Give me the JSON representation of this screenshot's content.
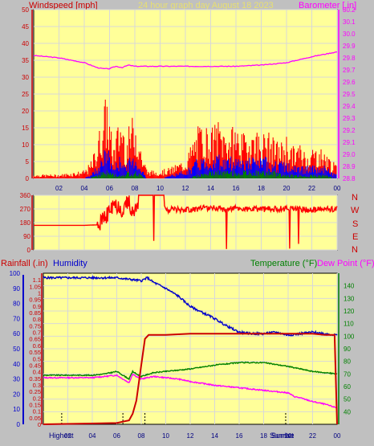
{
  "header": {
    "left_label": "Windspeed [mph]",
    "center_label": "24 hour graph day   August 18 2023",
    "right_label": "Barometer [.in]"
  },
  "bottom_header": {
    "rain_label": "Rainfall (.in)",
    "humidity_label": "Humidity",
    "temp_label": "Temperature (°F)",
    "dew_label": "Dew Point (°F)"
  },
  "compass": [
    "N",
    "W",
    "S",
    "E",
    "N"
  ],
  "x_ticks": [
    "02",
    "04",
    "06",
    "08",
    "10",
    "12",
    "14",
    "16",
    "18",
    "20",
    "22",
    "00"
  ],
  "events": {
    "highest": "Highest",
    "sunrise": "Sunrise",
    "sunset": "Sunset"
  },
  "colors": {
    "plot_bg": "#ffff99",
    "frame_bg": "#c0c0c0",
    "wind_gust": "#ff0000",
    "wind_avg": "#0000ff",
    "wind_low": "#008000",
    "barometer": "#ff00ff",
    "header_yellow": "#ffff66",
    "temperature": "#008000",
    "dew_point": "#ff00ff",
    "humidity": "#0000cc",
    "rainfall": "#cc0000"
  },
  "chart_data": [
    {
      "type": "area",
      "name": "wind_barometer",
      "x_range_hours": [
        0,
        24
      ],
      "grid": true,
      "left_axis": {
        "label": "Windspeed [mph]",
        "ylim": [
          0,
          50
        ],
        "ticks": [
          0,
          5,
          10,
          15,
          20,
          25,
          30,
          35,
          40,
          45,
          50
        ]
      },
      "right_axis": {
        "label": "Barometer [.in]",
        "ylim": [
          28.8,
          30.2
        ],
        "ticks": [
          28.8,
          28.9,
          29.0,
          29.1,
          29.2,
          29.3,
          29.4,
          29.5,
          29.6,
          29.7,
          29.8,
          29.9,
          30.0,
          30.1,
          30.2
        ]
      },
      "barometer": {
        "x": [
          0,
          2,
          4,
          5,
          5.5,
          6,
          6.5,
          7,
          7.5,
          8,
          9,
          10,
          11,
          12,
          14,
          16,
          18,
          20,
          22,
          23,
          24
        ],
        "y": [
          29.82,
          29.8,
          29.76,
          29.72,
          29.71,
          29.71,
          29.73,
          29.72,
          29.74,
          29.73,
          29.73,
          29.73,
          29.73,
          29.73,
          29.73,
          29.73,
          29.74,
          29.76,
          29.81,
          29.83,
          29.85
        ]
      },
      "gust_envelope": {
        "x": [
          0,
          2,
          4,
          4.5,
          5,
          5.5,
          5.8,
          6,
          6.3,
          6.6,
          7,
          7.3,
          7.6,
          8,
          8.3,
          8.6,
          9,
          10,
          11,
          12,
          12.5,
          13,
          13.5,
          14,
          14.5,
          15,
          15.5,
          16,
          16.5,
          17,
          17.5,
          18,
          18.5,
          19,
          19.5,
          20,
          20.5,
          21,
          21.5,
          22,
          22.5,
          23,
          23.5,
          24
        ],
        "y": [
          1,
          1,
          2,
          4,
          9,
          18,
          22,
          15,
          8,
          13,
          17,
          9,
          14,
          17,
          12,
          6,
          2,
          2,
          3,
          5,
          9,
          13,
          14,
          12,
          15,
          13,
          12,
          14,
          11,
          12,
          13,
          11,
          12,
          10,
          9,
          11,
          8,
          9,
          7,
          8,
          8,
          7,
          5,
          3
        ]
      },
      "avg_envelope": {
        "x": [
          0,
          2,
          4,
          4.5,
          5,
          5.5,
          5.8,
          6,
          6.3,
          6.6,
          7,
          7.3,
          7.6,
          8,
          8.3,
          8.6,
          9,
          10,
          11,
          12,
          12.5,
          13,
          13.5,
          14,
          14.5,
          15,
          15.5,
          16,
          16.5,
          17,
          17.5,
          18,
          18.5,
          19,
          19.5,
          20,
          20.5,
          21,
          21.5,
          22,
          22.5,
          23,
          23.5,
          24
        ],
        "y": [
          0,
          0,
          0,
          1,
          3,
          6,
          8,
          6,
          3,
          4,
          6,
          3,
          5,
          6,
          4,
          2,
          0,
          0,
          1,
          2,
          3,
          5,
          5,
          5,
          6,
          5,
          5,
          6,
          5,
          5,
          5,
          5,
          5,
          4,
          4,
          4,
          3,
          3,
          3,
          3,
          3,
          3,
          2,
          1
        ]
      },
      "low_envelope": {
        "x": [
          0,
          4,
          5,
          5.5,
          6,
          6.5,
          7,
          7.5,
          8,
          8.5,
          9,
          12,
          13,
          14,
          15,
          16,
          17,
          18,
          19,
          20,
          21,
          22,
          23,
          24
        ],
        "y": [
          0,
          0,
          1,
          2,
          2,
          1,
          1,
          2,
          2,
          1,
          0,
          0,
          1,
          2,
          2,
          2,
          2,
          2,
          2,
          1,
          1,
          1,
          1,
          0
        ]
      }
    },
    {
      "type": "line",
      "name": "wind_direction",
      "x_range_hours": [
        0,
        24
      ],
      "grid": true,
      "ylim": [
        0,
        360
      ],
      "ticks": [
        0,
        90,
        180,
        270,
        360
      ],
      "direction": {
        "x": [
          0,
          4,
          5,
          5.5,
          6,
          6.5,
          7,
          7.5,
          8,
          8.5,
          9,
          9.5,
          10,
          10.5,
          11,
          12,
          13,
          14,
          15,
          16,
          17,
          18,
          19,
          20,
          21,
          22,
          23,
          24
        ],
        "y": [
          162,
          162,
          165,
          190,
          260,
          300,
          270,
          310,
          240,
          360,
          360,
          360,
          355,
          262,
          270,
          265,
          270,
          280,
          270,
          275,
          265,
          270,
          268,
          275,
          270,
          262,
          268,
          270
        ]
      }
    },
    {
      "type": "line",
      "name": "temperature_humidity_rain",
      "x_range_hours": [
        0,
        24
      ],
      "grid": true,
      "humidity_axis": {
        "label": "Humidity",
        "ylim": [
          0,
          100
        ],
        "ticks": [
          0,
          10,
          20,
          30,
          40,
          50,
          60,
          70,
          80,
          90,
          100
        ]
      },
      "rain_axis": {
        "label": "Rainfall (.in)",
        "ylim": [
          0,
          1.15
        ],
        "ticks": [
          0,
          0.05,
          0.1,
          0.15,
          0.2,
          0.25,
          0.3,
          0.35,
          0.4,
          0.45,
          0.5,
          0.55,
          0.6,
          0.65,
          0.7,
          0.75,
          0.8,
          0.85,
          0.9,
          0.95,
          1.0,
          1.05,
          1.1
        ]
      },
      "temp_axis": {
        "label": "Temperature (°F)",
        "ylim": [
          30,
          150
        ],
        "ticks": [
          40,
          50,
          60,
          70,
          80,
          90,
          100,
          110,
          120,
          130,
          140
        ]
      },
      "humidity": {
        "x": [
          0,
          2,
          4,
          6,
          7,
          8,
          8.5,
          9,
          10,
          11,
          12,
          13,
          14,
          15,
          16,
          17,
          18,
          19,
          20,
          21,
          22,
          23,
          24
        ],
        "y": [
          97,
          97,
          97,
          97,
          96,
          95,
          97,
          94,
          90,
          85,
          78,
          74,
          70,
          65,
          61,
          60,
          60,
          61,
          59,
          60,
          61,
          60,
          59
        ]
      },
      "temperature": {
        "x": [
          0,
          2,
          4,
          5,
          6,
          7,
          7.3,
          7.6,
          8,
          9,
          10,
          11,
          12,
          14,
          16,
          18,
          20,
          22,
          23,
          24
        ],
        "y": [
          69,
          69,
          69,
          70,
          72,
          66,
          72,
          70,
          68,
          71,
          72,
          73,
          74,
          77,
          79,
          79,
          76,
          72,
          71,
          70
        ]
      },
      "dew_point": {
        "x": [
          0,
          2,
          4,
          6,
          7,
          7.3,
          7.6,
          8,
          9,
          10,
          11,
          12,
          14,
          16,
          18,
          20,
          20.5,
          21,
          22,
          23,
          24
        ],
        "y": [
          67,
          67,
          67,
          69,
          63,
          70,
          68,
          66,
          68,
          67,
          66,
          64,
          61,
          59,
          57,
          55,
          52,
          51,
          48,
          46,
          43
        ]
      },
      "rainfall": {
        "x": [
          0,
          6,
          6.5,
          7,
          7.3,
          7.6,
          8,
          8.3,
          8.6,
          9,
          10,
          12,
          14,
          16,
          18,
          20,
          22,
          23,
          23.8,
          24
        ],
        "y": [
          0,
          0.01,
          0.02,
          0.03,
          0.08,
          0.18,
          0.45,
          0.65,
          0.68,
          0.68,
          0.68,
          0.69,
          0.69,
          0.69,
          0.69,
          0.69,
          0.69,
          0.68,
          0.68,
          0.0
        ]
      },
      "event_markers_hours": [
        1.5,
        6.5,
        8.3,
        19.8
      ]
    }
  ]
}
